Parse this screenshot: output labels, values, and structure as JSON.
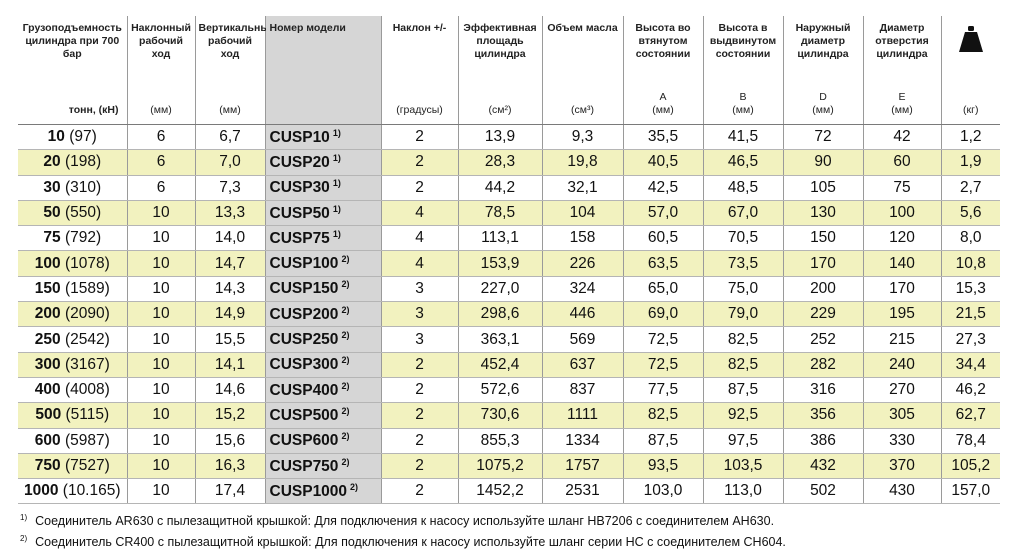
{
  "headers": [
    {
      "title": "Грузоподъемность цилиндра при 700 бар",
      "unit": "тонн, (кН)"
    },
    {
      "title": "Наклонный рабочий ход",
      "unit": "(мм)"
    },
    {
      "title": "Вертикальный рабочий ход",
      "unit": "(мм)"
    },
    {
      "title": "Номер модели",
      "unit": ""
    },
    {
      "title": "Наклон +/-",
      "unit": "(градусы)"
    },
    {
      "title": "Эффективная площадь цилиндра",
      "unit": "(см²)"
    },
    {
      "title": "Объем масла",
      "unit": "(см³)"
    },
    {
      "title": "Высота во втянутом состоянии",
      "letter": "A",
      "unit": "(мм)"
    },
    {
      "title": "Высота в выдвинутом состоянии",
      "letter": "B",
      "unit": "(мм)"
    },
    {
      "title": "Наружный диаметр цилиндра",
      "letter": "D",
      "unit": "(мм)"
    },
    {
      "title": "Диаметр отверстия цилиндра",
      "letter": "E",
      "unit": "(мм)"
    },
    {
      "title": "",
      "icon": "weight-icon",
      "unit": "(кг)"
    }
  ],
  "rows": [
    {
      "cap": "10",
      "kn": "(97)",
      "tilt_stroke": "6",
      "vert_stroke": "6,7",
      "model": "CUSP10",
      "note": "1)",
      "tilt": "2",
      "area": "13,9",
      "oil": "9,3",
      "a": "35,5",
      "b": "41,5",
      "d": "72",
      "e": "42",
      "kg": "1,2"
    },
    {
      "cap": "20",
      "kn": "(198)",
      "tilt_stroke": "6",
      "vert_stroke": "7,0",
      "model": "CUSP20",
      "note": "1)",
      "tilt": "2",
      "area": "28,3",
      "oil": "19,8",
      "a": "40,5",
      "b": "46,5",
      "d": "90",
      "e": "60",
      "kg": "1,9"
    },
    {
      "cap": "30",
      "kn": "(310)",
      "tilt_stroke": "6",
      "vert_stroke": "7,3",
      "model": "CUSP30",
      "note": "1)",
      "tilt": "2",
      "area": "44,2",
      "oil": "32,1",
      "a": "42,5",
      "b": "48,5",
      "d": "105",
      "e": "75",
      "kg": "2,7"
    },
    {
      "cap": "50",
      "kn": "(550)",
      "tilt_stroke": "10",
      "vert_stroke": "13,3",
      "model": "CUSP50",
      "note": "1)",
      "tilt": "4",
      "area": "78,5",
      "oil": "104",
      "a": "57,0",
      "b": "67,0",
      "d": "130",
      "e": "100",
      "kg": "5,6"
    },
    {
      "cap": "75",
      "kn": "(792)",
      "tilt_stroke": "10",
      "vert_stroke": "14,0",
      "model": "CUSP75",
      "note": "1)",
      "tilt": "4",
      "area": "113,1",
      "oil": "158",
      "a": "60,5",
      "b": "70,5",
      "d": "150",
      "e": "120",
      "kg": "8,0"
    },
    {
      "cap": "100",
      "kn": "(1078)",
      "tilt_stroke": "10",
      "vert_stroke": "14,7",
      "model": "CUSP100",
      "note": "2)",
      "tilt": "4",
      "area": "153,9",
      "oil": "226",
      "a": "63,5",
      "b": "73,5",
      "d": "170",
      "e": "140",
      "kg": "10,8"
    },
    {
      "cap": "150",
      "kn": "(1589)",
      "tilt_stroke": "10",
      "vert_stroke": "14,3",
      "model": "CUSP150",
      "note": "2)",
      "tilt": "3",
      "area": "227,0",
      "oil": "324",
      "a": "65,0",
      "b": "75,0",
      "d": "200",
      "e": "170",
      "kg": "15,3"
    },
    {
      "cap": "200",
      "kn": "(2090)",
      "tilt_stroke": "10",
      "vert_stroke": "14,9",
      "model": "CUSP200",
      "note": "2)",
      "tilt": "3",
      "area": "298,6",
      "oil": "446",
      "a": "69,0",
      "b": "79,0",
      "d": "229",
      "e": "195",
      "kg": "21,5"
    },
    {
      "cap": "250",
      "kn": "(2542)",
      "tilt_stroke": "10",
      "vert_stroke": "15,5",
      "model": "CUSP250",
      "note": "2)",
      "tilt": "3",
      "area": "363,1",
      "oil": "569",
      "a": "72,5",
      "b": "82,5",
      "d": "252",
      "e": "215",
      "kg": "27,3"
    },
    {
      "cap": "300",
      "kn": "(3167)",
      "tilt_stroke": "10",
      "vert_stroke": "14,1",
      "model": "CUSP300",
      "note": "2)",
      "tilt": "2",
      "area": "452,4",
      "oil": "637",
      "a": "72,5",
      "b": "82,5",
      "d": "282",
      "e": "240",
      "kg": "34,4"
    },
    {
      "cap": "400",
      "kn": "(4008)",
      "tilt_stroke": "10",
      "vert_stroke": "14,6",
      "model": "CUSP400",
      "note": "2)",
      "tilt": "2",
      "area": "572,6",
      "oil": "837",
      "a": "77,5",
      "b": "87,5",
      "d": "316",
      "e": "270",
      "kg": "46,2"
    },
    {
      "cap": "500",
      "kn": "(5115)",
      "tilt_stroke": "10",
      "vert_stroke": "15,2",
      "model": "CUSP500",
      "note": "2)",
      "tilt": "2",
      "area": "730,6",
      "oil": "1111",
      "a": "82,5",
      "b": "92,5",
      "d": "356",
      "e": "305",
      "kg": "62,7"
    },
    {
      "cap": "600",
      "kn": "(5987)",
      "tilt_stroke": "10",
      "vert_stroke": "15,6",
      "model": "CUSP600",
      "note": "2)",
      "tilt": "2",
      "area": "855,3",
      "oil": "1334",
      "a": "87,5",
      "b": "97,5",
      "d": "386",
      "e": "330",
      "kg": "78,4"
    },
    {
      "cap": "750",
      "kn": "(7527)",
      "tilt_stroke": "10",
      "vert_stroke": "16,3",
      "model": "CUSP750",
      "note": "2)",
      "tilt": "2",
      "area": "1075,2",
      "oil": "1757",
      "a": "93,5",
      "b": "103,5",
      "d": "432",
      "e": "370",
      "kg": "105,2"
    },
    {
      "cap": "1000",
      "kn": "(10.165)",
      "tilt_stroke": "10",
      "vert_stroke": "17,4",
      "model": "CUSP1000",
      "note": "2)",
      "tilt": "2",
      "area": "1452,2",
      "oil": "2531",
      "a": "103,0",
      "b": "113,0",
      "d": "502",
      "e": "430",
      "kg": "157,0"
    }
  ],
  "footnotes": [
    {
      "mark": "1)",
      "text": "Соединитель AR630 с пылезащитной крышкой: Для подключения к насосу используйте шланг HB7206 с соединителем AH630."
    },
    {
      "mark": "2)",
      "text": "Соединитель CR400 с пылезащитной крышкой: Для подключения к насосу используйте шланг серии HC с соединителем CH604."
    }
  ],
  "colors": {
    "row_highlight": "#f2f2bf",
    "model_column": "#d6d6d6"
  }
}
